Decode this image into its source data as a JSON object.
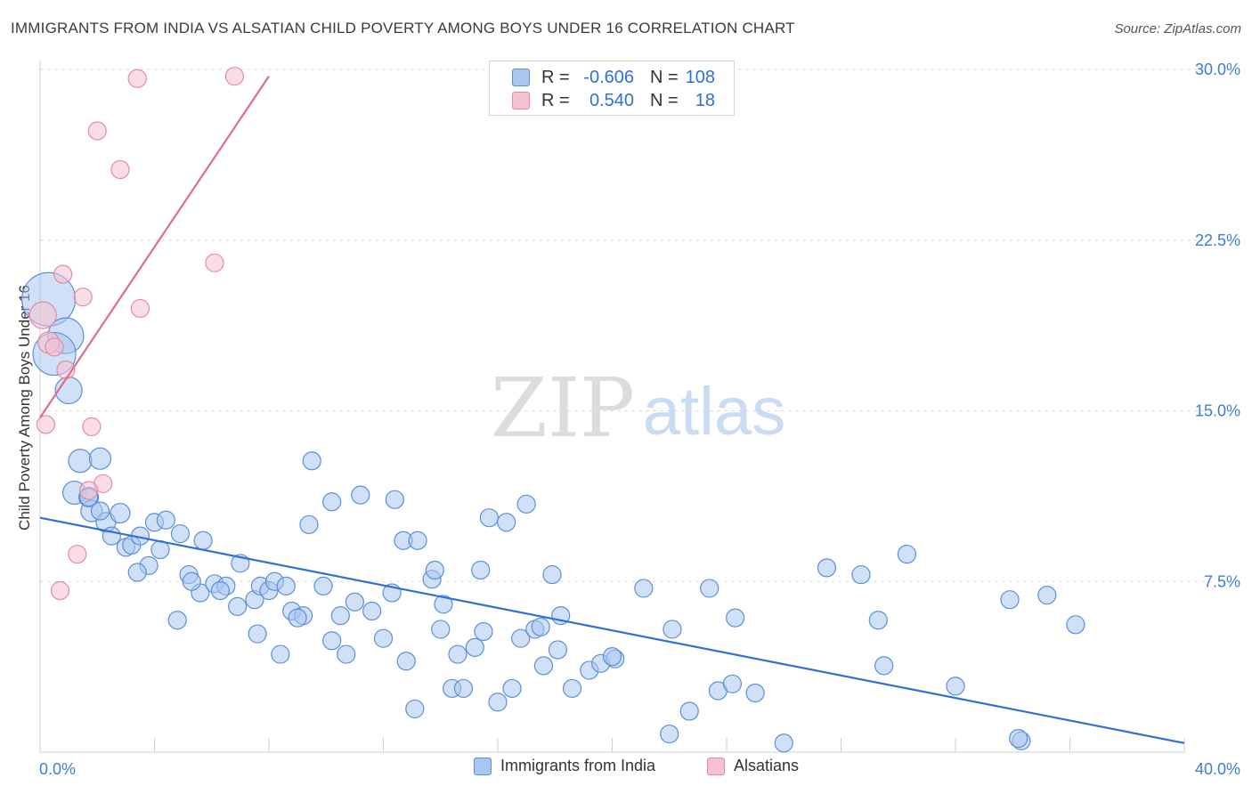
{
  "title": "IMMIGRANTS FROM INDIA VS ALSATIAN CHILD POVERTY AMONG BOYS UNDER 16 CORRELATION CHART",
  "source": "Source: ZipAtlas.com",
  "watermark": {
    "zip": "ZIP",
    "atlas": "atlas"
  },
  "colors": {
    "blue_fill": "#a9c6ef",
    "blue_stroke": "#5b8fd9",
    "blue_line": "#2f6fd6",
    "pink_fill": "#f6c1d0",
    "pink_stroke": "#e58aa6",
    "pink_line": "#e06a91",
    "tick_label": "#3f7bd8"
  },
  "legend_box": {
    "rows": [
      {
        "r_label": "R =",
        "r_value": "-0.606",
        "n_label": "N =",
        "n_value": "108"
      },
      {
        "r_label": "R =",
        "r_value": "0.540",
        "n_label": "N =",
        "n_value": "18"
      }
    ]
  },
  "legend_bottom": [
    {
      "label": "Immigrants from India"
    },
    {
      "label": "Alsatians"
    }
  ],
  "chart_data": {
    "type": "scatter",
    "xlabel": "",
    "ylabel": "Child Poverty Among Boys Under 16",
    "xlim": [
      0,
      40
    ],
    "ylim": [
      0,
      30
    ],
    "x_tick_labels": [
      {
        "value": 0,
        "label": "0.0%"
      },
      {
        "value": 40,
        "label": "40.0%"
      }
    ],
    "y_tick_labels": [
      {
        "value": 7.5,
        "label": "7.5%"
      },
      {
        "value": 15,
        "label": "15.0%"
      },
      {
        "value": 22.5,
        "label": "22.5%"
      },
      {
        "value": 30,
        "label": "30.0%"
      }
    ],
    "series": [
      {
        "name": "Immigrants from India",
        "color_key": "blue",
        "trendline": {
          "x": [
            0,
            40
          ],
          "y": [
            10.3,
            0.4
          ]
        },
        "points": [
          [
            0.3,
            19.9,
            3
          ],
          [
            0.9,
            18.3,
            2
          ],
          [
            0.5,
            17.5,
            2.4
          ],
          [
            1.0,
            15.9,
            1.5
          ],
          [
            1.4,
            12.8,
            1.3
          ],
          [
            2.1,
            12.9,
            1.2
          ],
          [
            1.2,
            11.4,
            1.3
          ],
          [
            1.7,
            11.2,
            1.1
          ],
          [
            1.8,
            10.6,
            1.2
          ],
          [
            2.3,
            10.1,
            1.1
          ],
          [
            2.8,
            10.5,
            1.1
          ],
          [
            2.5,
            9.5,
            1.0
          ],
          [
            3.0,
            9.0,
            1.0
          ],
          [
            3.2,
            9.1,
            1.0
          ],
          [
            3.5,
            9.5,
            1.0
          ],
          [
            4.0,
            10.1,
            1.0
          ],
          [
            4.4,
            10.2,
            1.0
          ],
          [
            4.9,
            9.6,
            1.0
          ],
          [
            5.7,
            9.3,
            1.0
          ],
          [
            4.2,
            8.9,
            1.0
          ],
          [
            3.8,
            8.2,
            1.0
          ],
          [
            3.4,
            7.9,
            1.0
          ],
          [
            5.2,
            7.8,
            1.0
          ],
          [
            5.6,
            7.0,
            1.0
          ],
          [
            5.3,
            7.5,
            1.0
          ],
          [
            6.1,
            7.4,
            1.0
          ],
          [
            6.5,
            7.3,
            1.0
          ],
          [
            6.3,
            7.1,
            1.0
          ],
          [
            7.0,
            8.3,
            1.0
          ],
          [
            6.9,
            6.4,
            1.0
          ],
          [
            7.5,
            6.7,
            1.0
          ],
          [
            7.7,
            7.3,
            1.0
          ],
          [
            8.0,
            7.1,
            1.0
          ],
          [
            8.2,
            7.5,
            1.0
          ],
          [
            8.6,
            7.3,
            1.0
          ],
          [
            4.8,
            5.8,
            1.0
          ],
          [
            7.6,
            5.2,
            1.0
          ],
          [
            8.4,
            4.3,
            1.0
          ],
          [
            8.8,
            6.2,
            1.0
          ],
          [
            9.2,
            6.0,
            1.0
          ],
          [
            9.0,
            5.9,
            1.0
          ],
          [
            9.4,
            10.0,
            1.0
          ],
          [
            9.5,
            12.8,
            1.0
          ],
          [
            9.9,
            7.3,
            1.0
          ],
          [
            10.2,
            4.9,
            1.0
          ],
          [
            10.5,
            6.0,
            1.0
          ],
          [
            10.7,
            4.3,
            1.0
          ],
          [
            11.0,
            6.6,
            1.0
          ],
          [
            10.2,
            11.0,
            1.0
          ],
          [
            11.2,
            11.3,
            1.0
          ],
          [
            11.6,
            6.2,
            1.0
          ],
          [
            12.0,
            5.0,
            1.0
          ],
          [
            12.3,
            7.0,
            1.0
          ],
          [
            12.7,
            9.3,
            1.0
          ],
          [
            12.4,
            11.1,
            1.0
          ],
          [
            12.8,
            4.0,
            1.0
          ],
          [
            13.1,
            1.9,
            1.0
          ],
          [
            13.2,
            9.3,
            1.0
          ],
          [
            13.7,
            7.6,
            1.0
          ],
          [
            13.8,
            8.0,
            1.0
          ],
          [
            14.0,
            5.4,
            1.0
          ],
          [
            14.1,
            6.5,
            1.0
          ],
          [
            14.4,
            2.8,
            1.0
          ],
          [
            14.6,
            4.3,
            1.0
          ],
          [
            14.8,
            2.8,
            1.0
          ],
          [
            15.2,
            4.6,
            1.0
          ],
          [
            15.5,
            5.3,
            1.0
          ],
          [
            15.4,
            8.0,
            1.0
          ],
          [
            15.7,
            10.3,
            1.0
          ],
          [
            16.0,
            2.2,
            1.0
          ],
          [
            16.3,
            10.1,
            1.0
          ],
          [
            16.5,
            2.8,
            1.0
          ],
          [
            16.8,
            5.0,
            1.0
          ],
          [
            17.0,
            10.9,
            1.0
          ],
          [
            17.3,
            5.4,
            1.0
          ],
          [
            17.5,
            5.5,
            1.0
          ],
          [
            17.6,
            3.8,
            1.0
          ],
          [
            17.9,
            7.8,
            1.0
          ],
          [
            18.2,
            6.0,
            1.0
          ],
          [
            18.1,
            4.5,
            1.0
          ],
          [
            18.6,
            2.8,
            1.0
          ],
          [
            19.2,
            3.6,
            1.0
          ],
          [
            19.6,
            3.9,
            1.0
          ],
          [
            20.1,
            4.1,
            1.0
          ],
          [
            20.0,
            4.2,
            1.0
          ],
          [
            21.1,
            7.2,
            1.0
          ],
          [
            22.0,
            0.8,
            1.0
          ],
          [
            22.1,
            5.4,
            1.0
          ],
          [
            22.7,
            1.8,
            1.0
          ],
          [
            23.4,
            7.2,
            1.0
          ],
          [
            23.7,
            2.7,
            1.0
          ],
          [
            24.2,
            3.0,
            1.0
          ],
          [
            24.3,
            5.9,
            1.0
          ],
          [
            25.0,
            2.6,
            1.0
          ],
          [
            26.0,
            0.4,
            1.0
          ],
          [
            27.5,
            8.1,
            1.0
          ],
          [
            28.7,
            7.8,
            1.0
          ],
          [
            29.3,
            5.8,
            1.0
          ],
          [
            29.5,
            3.8,
            1.0
          ],
          [
            30.3,
            8.7,
            1.0
          ],
          [
            32.0,
            2.9,
            1.0
          ],
          [
            33.9,
            6.7,
            1.0
          ],
          [
            34.3,
            0.5,
            1.0
          ],
          [
            34.2,
            0.6,
            1.0
          ],
          [
            35.2,
            6.9,
            1.0
          ],
          [
            36.2,
            5.6,
            1.0
          ],
          [
            1.7,
            11.2,
            1.0
          ],
          [
            2.1,
            10.6,
            1.0
          ]
        ]
      },
      {
        "name": "Alsatians",
        "color_key": "pink",
        "trendline": {
          "x": [
            0,
            8
          ],
          "y": [
            14.7,
            29.7
          ]
        },
        "points": [
          [
            0.1,
            19.2,
            1.5
          ],
          [
            0.3,
            18.0,
            1.2
          ],
          [
            0.5,
            17.8,
            1.0
          ],
          [
            0.9,
            16.8,
            1.0
          ],
          [
            0.2,
            14.4,
            1.0
          ],
          [
            0.8,
            21.0,
            1.0
          ],
          [
            1.5,
            20.0,
            1.0
          ],
          [
            1.8,
            14.3,
            1.0
          ],
          [
            2.2,
            11.8,
            1.0
          ],
          [
            1.7,
            11.5,
            1.0
          ],
          [
            1.3,
            8.7,
            1.0
          ],
          [
            0.7,
            7.1,
            1.0
          ],
          [
            2.0,
            27.3,
            1.0
          ],
          [
            2.8,
            25.6,
            1.0
          ],
          [
            3.4,
            29.6,
            1.0
          ],
          [
            3.5,
            19.5,
            1.0
          ],
          [
            6.1,
            21.5,
            1.0
          ],
          [
            6.8,
            29.7,
            1.0
          ]
        ]
      }
    ]
  }
}
